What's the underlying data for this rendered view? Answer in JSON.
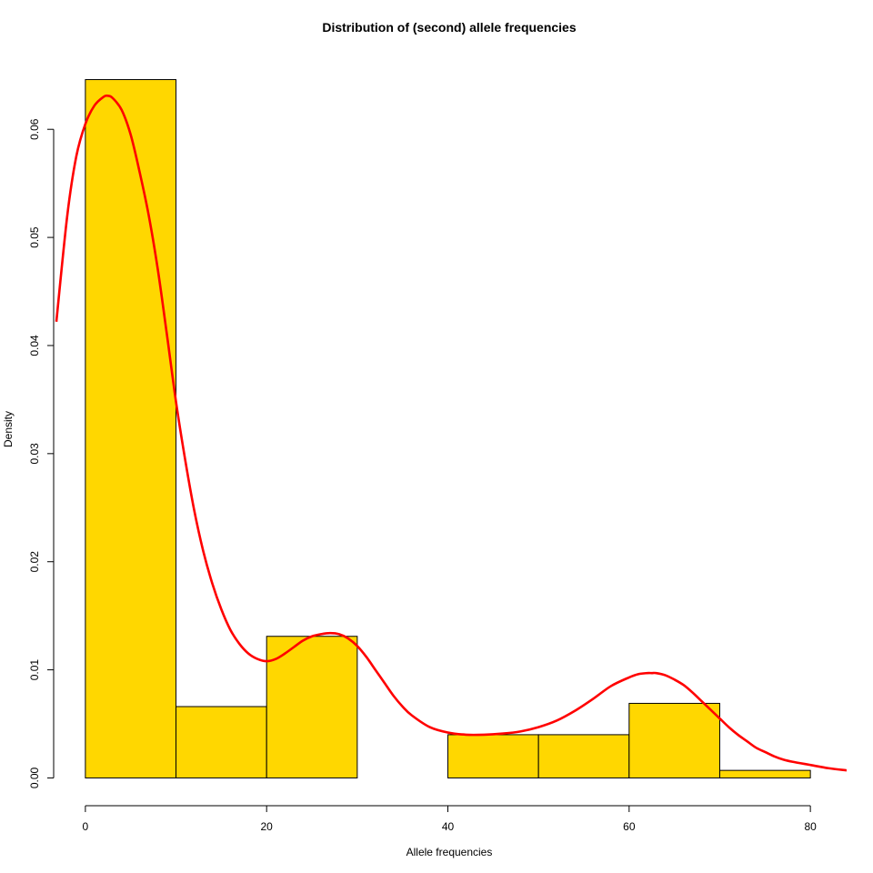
{
  "chart_data": {
    "type": "bar",
    "subtype": "histogram-with-density",
    "title": "Distribution of (second) allele frequencies",
    "xlabel": "Allele frequencies",
    "ylabel": "Density",
    "xlim": [
      -3.5,
      84
    ],
    "ylim": [
      -0.0024,
      0.067
    ],
    "x_ticks": [
      0,
      20,
      40,
      60,
      80
    ],
    "x_tick_labels": [
      "0",
      "20",
      "40",
      "60",
      "80"
    ],
    "y_ticks": [
      0.0,
      0.01,
      0.02,
      0.03,
      0.04,
      0.05,
      0.06
    ],
    "y_tick_labels": [
      "0.00",
      "0.01",
      "0.02",
      "0.03",
      "0.04",
      "0.05",
      "0.06"
    ],
    "bins": [
      {
        "x0": 0,
        "x1": 10,
        "density": 0.0646
      },
      {
        "x0": 10,
        "x1": 20,
        "density": 0.0066
      },
      {
        "x0": 20,
        "x1": 30,
        "density": 0.0131
      },
      {
        "x0": 30,
        "x1": 40,
        "density": 0.0
      },
      {
        "x0": 40,
        "x1": 50,
        "density": 0.004
      },
      {
        "x0": 50,
        "x1": 60,
        "density": 0.004
      },
      {
        "x0": 60,
        "x1": 70,
        "density": 0.0069
      },
      {
        "x0": 70,
        "x1": 80,
        "density": 0.0007
      }
    ],
    "density_curve": {
      "x": [
        -3.2,
        -2,
        -1,
        0,
        1,
        2,
        2.5,
        3,
        4,
        5,
        6,
        7,
        8,
        9,
        10,
        11,
        12,
        13,
        14,
        15,
        16,
        17,
        18,
        19,
        20,
        21,
        22,
        23,
        24,
        25,
        26,
        27,
        28,
        29,
        30,
        31,
        32,
        33,
        34,
        35,
        36,
        38,
        40,
        42,
        44,
        46,
        48,
        50,
        52,
        54,
        56,
        58,
        60,
        61,
        62,
        62.5,
        63,
        64,
        65,
        66,
        67,
        68,
        69,
        70,
        71,
        72,
        73,
        74,
        75,
        76,
        77,
        78,
        80,
        82,
        84
      ],
      "y": [
        0.0422,
        0.052,
        0.0575,
        0.0605,
        0.0622,
        0.063,
        0.0631,
        0.0629,
        0.0618,
        0.0595,
        0.056,
        0.052,
        0.047,
        0.041,
        0.0348,
        0.0295,
        0.0248,
        0.021,
        0.018,
        0.0156,
        0.0137,
        0.0124,
        0.0115,
        0.011,
        0.0108,
        0.011,
        0.0115,
        0.0121,
        0.0127,
        0.0131,
        0.0133,
        0.0134,
        0.0133,
        0.0129,
        0.0122,
        0.0112,
        0.01,
        0.0088,
        0.0076,
        0.0066,
        0.0058,
        0.0047,
        0.0042,
        0.004,
        0.004,
        0.0041,
        0.0043,
        0.0047,
        0.0053,
        0.0062,
        0.0073,
        0.0085,
        0.0093,
        0.0096,
        0.0097,
        0.0097,
        0.0097,
        0.0095,
        0.0091,
        0.0086,
        0.0079,
        0.0071,
        0.0063,
        0.0055,
        0.0047,
        0.004,
        0.0034,
        0.0028,
        0.0024,
        0.002,
        0.0017,
        0.0015,
        0.0012,
        0.0009,
        0.0007
      ]
    },
    "colors": {
      "bar_fill": "#FFD700",
      "bar_border": "#000000",
      "curve": "#FF0000",
      "axis": "#000000"
    },
    "grid": false,
    "legend": "none"
  }
}
